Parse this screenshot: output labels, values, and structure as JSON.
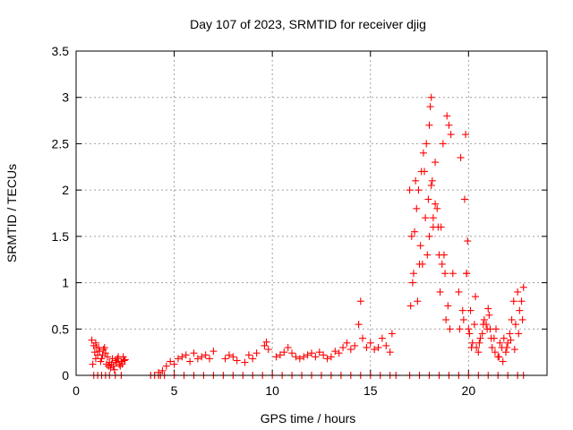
{
  "chart_data": {
    "type": "scatter",
    "title": "Day 107 of 2023, SRMTID for receiver djig",
    "xlabel": "GPS time / hours",
    "ylabel": "SRMTID / TECUs",
    "xlim": [
      0,
      24
    ],
    "ylim": [
      0,
      3.5
    ],
    "xticks": [
      0,
      5,
      10,
      15,
      20
    ],
    "xtick_labels": [
      "0",
      "5",
      "10",
      "15",
      "20"
    ],
    "yticks": [
      0,
      0.5,
      1,
      1.5,
      2,
      2.5,
      3,
      3.5
    ],
    "ytick_labels": [
      "0",
      "0.5",
      "1",
      "1.5",
      "2",
      "2.5",
      "3",
      "3.5"
    ],
    "grid": true,
    "marker": "+",
    "series": [
      {
        "name": "djig",
        "color": "#ff0000",
        "x": [
          0.8,
          0.9,
          0.95,
          1.0,
          1.05,
          1.1,
          1.2,
          1.3,
          1.4,
          1.5,
          1.6,
          1.7,
          1.8,
          1.9,
          2.0,
          2.1,
          2.2,
          2.3,
          2.4,
          2.5,
          0.85,
          1.0,
          1.15,
          1.25,
          1.35,
          1.45,
          1.55,
          1.65,
          1.75,
          1.85,
          1.95,
          2.05,
          2.15,
          2.25,
          2.35,
          2.45,
          4.2,
          4.4,
          4.6,
          4.8,
          5.0,
          5.2,
          5.4,
          5.6,
          5.8,
          6.0,
          6.2,
          6.4,
          6.6,
          6.8,
          7.0,
          7.6,
          7.8,
          8.0,
          8.2,
          8.6,
          8.8,
          9.0,
          9.2,
          9.6,
          9.7,
          9.8,
          10.2,
          10.4,
          10.6,
          10.8,
          11.0,
          11.2,
          11.4,
          11.6,
          11.8,
          12.0,
          12.2,
          12.4,
          12.6,
          12.8,
          13.0,
          13.2,
          13.4,
          13.6,
          13.8,
          14.0,
          14.2,
          14.4,
          14.5,
          14.6,
          14.8,
          15.0,
          15.2,
          15.4,
          15.6,
          15.8,
          16.0,
          16.1,
          17.0,
          17.1,
          17.2,
          17.3,
          17.4,
          17.5,
          17.6,
          17.7,
          17.8,
          17.9,
          18.0,
          18.05,
          18.1,
          18.15,
          18.2,
          18.3,
          18.4,
          18.5,
          18.6,
          18.7,
          18.8,
          18.9,
          19.0,
          19.1,
          19.2,
          17.05,
          17.15,
          17.25,
          17.35,
          17.45,
          17.55,
          17.65,
          17.75,
          17.85,
          17.95,
          18.0,
          18.1,
          18.2,
          18.3,
          18.45,
          18.55,
          18.65,
          18.75,
          18.85,
          18.95,
          19.05,
          19.5,
          19.6,
          19.7,
          19.8,
          19.85,
          19.9,
          19.95,
          20.0,
          20.1,
          20.2,
          20.3,
          20.4,
          20.5,
          20.6,
          20.7,
          20.8,
          20.9,
          21.0,
          21.1,
          21.2,
          21.3,
          21.4,
          21.5,
          21.6,
          21.7,
          21.8,
          21.9,
          22.0,
          22.1,
          22.2,
          22.3,
          22.4,
          22.5,
          22.6,
          22.7,
          22.8,
          19.55,
          19.75,
          19.9,
          20.05,
          20.15,
          20.35,
          20.55,
          20.75,
          20.95,
          21.05,
          21.15,
          21.35,
          21.55,
          21.75,
          21.95,
          22.15,
          22.35,
          22.55,
          22.75,
          0.9,
          1.1,
          1.3,
          1.5,
          1.7,
          2.0,
          2.3,
          3.8,
          4.0,
          4.2,
          4.3,
          4.5,
          5.0,
          5.5,
          6.0,
          6.5,
          7.0,
          7.5,
          8.0,
          8.5,
          9.0,
          9.5,
          10.0,
          10.5,
          11.0,
          11.5,
          12.0,
          12.5,
          13.0,
          13.5,
          14.0,
          14.5,
          15.0,
          15.5,
          16.0,
          16.3,
          17.0,
          17.5,
          18.0,
          18.5,
          19.0,
          19.5,
          20.0,
          20.5,
          21.0,
          21.5,
          22.0,
          22.5,
          22.8
        ],
        "y": [
          0.38,
          0.32,
          0.25,
          0.18,
          0.3,
          0.22,
          0.26,
          0.18,
          0.28,
          0.24,
          0.2,
          0.14,
          0.12,
          0.1,
          0.16,
          0.18,
          0.12,
          0.15,
          0.2,
          0.17,
          0.12,
          0.35,
          0.3,
          0.15,
          0.22,
          0.3,
          0.12,
          0.1,
          0.08,
          0.18,
          0.06,
          0.14,
          0.2,
          0.1,
          0.12,
          0.16,
          0.03,
          0.05,
          0.1,
          0.15,
          0.12,
          0.18,
          0.2,
          0.22,
          0.15,
          0.24,
          0.18,
          0.2,
          0.22,
          0.18,
          0.26,
          0.18,
          0.22,
          0.2,
          0.16,
          0.14,
          0.22,
          0.18,
          0.24,
          0.32,
          0.36,
          0.28,
          0.2,
          0.22,
          0.25,
          0.3,
          0.24,
          0.2,
          0.18,
          0.2,
          0.22,
          0.24,
          0.2,
          0.25,
          0.22,
          0.18,
          0.2,
          0.26,
          0.24,
          0.3,
          0.35,
          0.28,
          0.32,
          0.55,
          0.8,
          0.4,
          0.3,
          0.35,
          0.28,
          0.3,
          0.4,
          0.32,
          0.25,
          0.45,
          2.0,
          1.5,
          1.1,
          2.1,
          0.8,
          1.2,
          2.2,
          2.4,
          1.7,
          1.3,
          2.7,
          2.9,
          3.0,
          2.1,
          1.6,
          2.3,
          1.8,
          1.3,
          1.6,
          2.5,
          1.1,
          2.8,
          2.7,
          2.6,
          1.1,
          0.75,
          1.0,
          1.55,
          1.8,
          2.0,
          1.4,
          1.2,
          2.2,
          2.5,
          1.9,
          1.5,
          2.05,
          1.7,
          1.85,
          1.6,
          0.9,
          1.2,
          1.3,
          0.6,
          0.75,
          0.5,
          0.9,
          2.35,
          0.7,
          1.9,
          2.6,
          1.1,
          1.45,
          0.5,
          0.7,
          0.35,
          0.55,
          0.3,
          0.25,
          0.4,
          0.45,
          0.6,
          0.55,
          0.72,
          0.5,
          0.3,
          0.4,
          0.5,
          0.2,
          0.35,
          0.3,
          0.4,
          0.25,
          0.35,
          0.45,
          0.6,
          0.8,
          0.55,
          0.9,
          0.7,
          0.8,
          0.95,
          0.5,
          0.6,
          1.1,
          0.45,
          0.3,
          0.85,
          0.35,
          0.55,
          0.5,
          0.65,
          0.4,
          0.25,
          0.2,
          0.15,
          0.3,
          0.38,
          0.28,
          0.45,
          0.6,
          0.0,
          0.0,
          0.0,
          0.0,
          0.0,
          0.0,
          0.0,
          0.0,
          0.0,
          0.0,
          0.0,
          0.0,
          0.0,
          0.0,
          0.0,
          0.0,
          0.0,
          0.0,
          0.0,
          0.0,
          0.0,
          0.0,
          0.0,
          0.0,
          0.0,
          0.0,
          0.0,
          0.0,
          0.0,
          0.0,
          0.0,
          0.0,
          0.0,
          0.0,
          0.0,
          0.0,
          0.0,
          0.0,
          0.0,
          0.0,
          0.0,
          0.0,
          0.0,
          0.0,
          0.0,
          0.0,
          0.0,
          0.0,
          0.0
        ]
      }
    ]
  }
}
